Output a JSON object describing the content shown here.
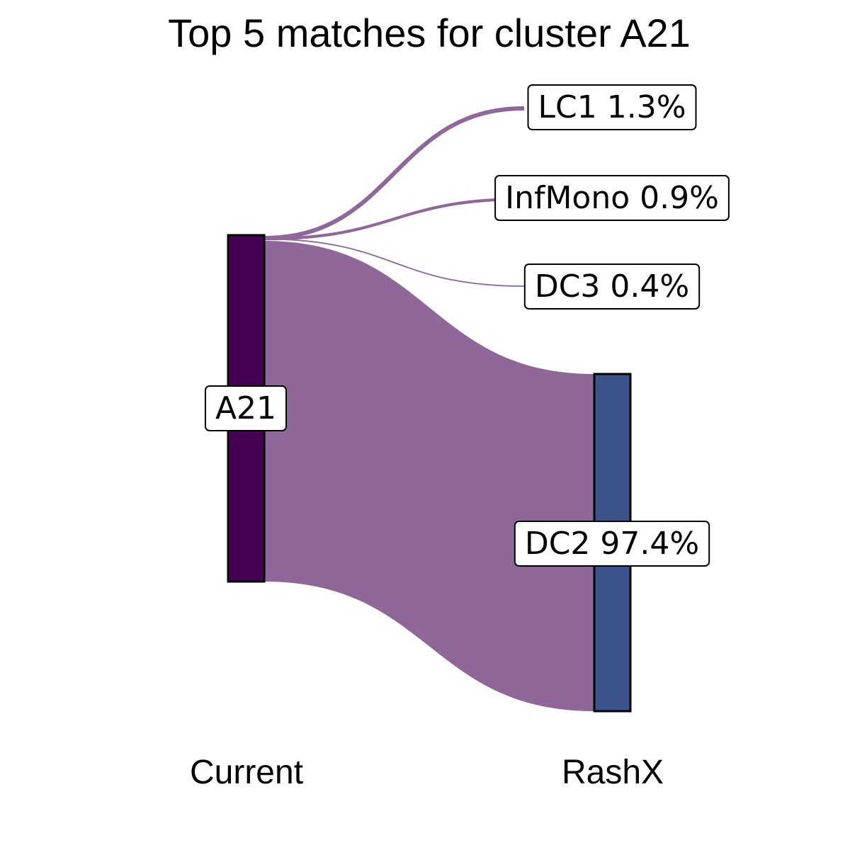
{
  "title": "Top 5 matches for cluster A21",
  "chart_data": {
    "type": "sankey",
    "title": "Top 5 matches for cluster A21",
    "axes": [
      "Current",
      "RashX"
    ],
    "source": {
      "name": "A21",
      "label": "A21",
      "color": "#440154"
    },
    "targets": [
      {
        "name": "LC1",
        "label": "LC1 1.3%",
        "percent": 1.3,
        "color": "#8f6899"
      },
      {
        "name": "InfMono",
        "label": "InfMono 0.9%",
        "percent": 0.9,
        "color": "#8f6899"
      },
      {
        "name": "DC3",
        "label": "DC3 0.4%",
        "percent": 0.4,
        "color": "#8f6899"
      },
      {
        "name": "DC2",
        "label": "DC2 97.4%",
        "percent": 97.4,
        "color": "#3b528b"
      }
    ],
    "flow_color": "#8f6899"
  }
}
